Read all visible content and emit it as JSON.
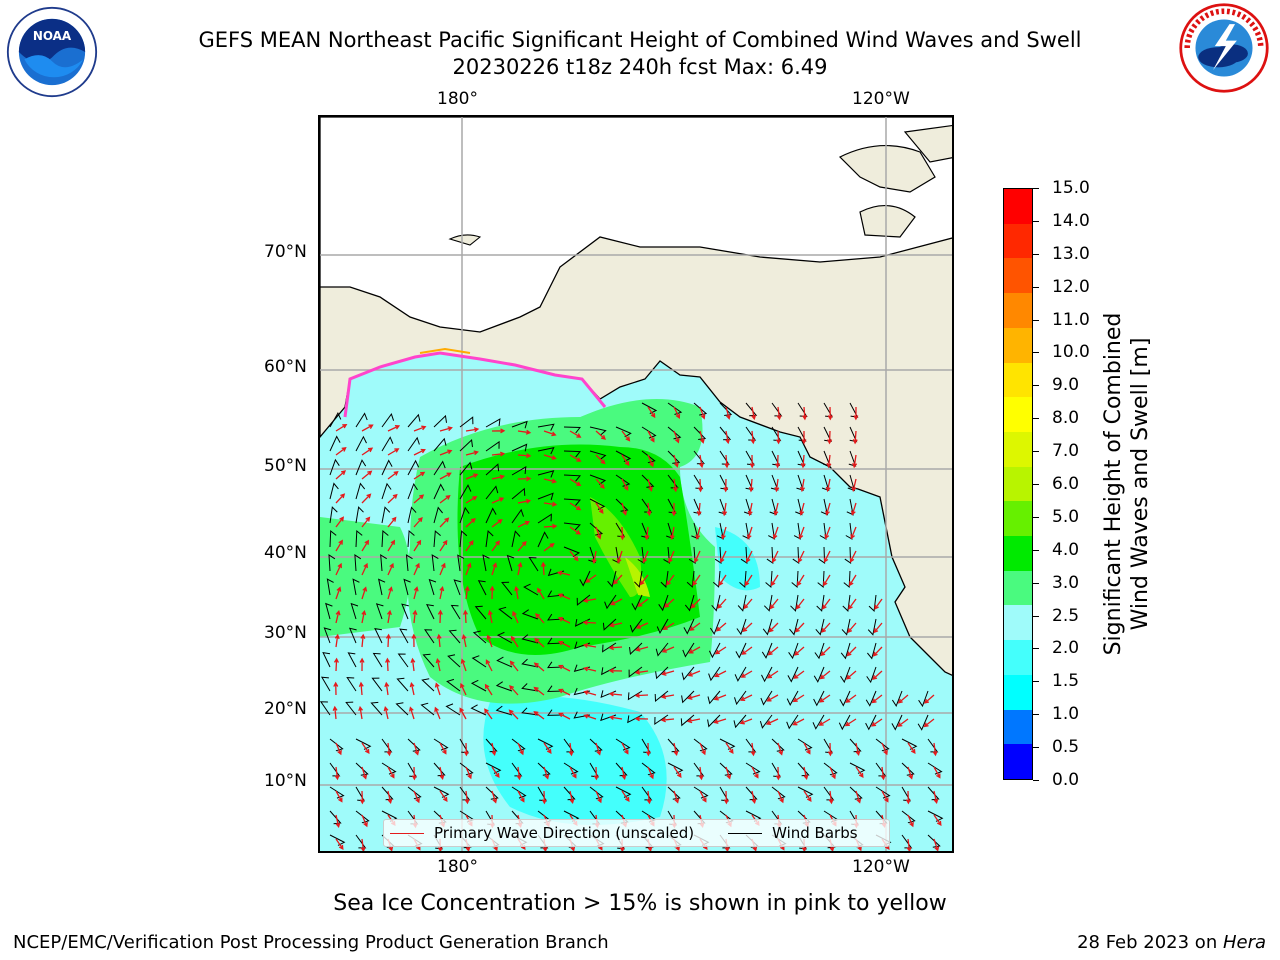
{
  "header": {
    "title_line1": "GEFS MEAN Northeast Pacific Significant Height of Combined Wind Waves and Swell",
    "title_line2": "20230226 t18z 240h fcst   Max: 6.49"
  },
  "logos": {
    "left": {
      "icon": "noaa-logo-icon",
      "text": "NOAA"
    },
    "right": {
      "icon": "nws-logo-icon",
      "text": "NATIONAL WEATHER SERVICE"
    }
  },
  "map": {
    "lon_labels_top": [
      "180°",
      "120°W"
    ],
    "lon_labels_bottom": [
      "180°",
      "120°W"
    ],
    "lat_labels": [
      "70°N",
      "60°N",
      "50°N",
      "40°N",
      "30°N",
      "20°N",
      "10°N"
    ],
    "land_color": "#efeddc",
    "ocean_base_color": "#9ffbfa",
    "legend": [
      {
        "label": "Primary Wave Direction (unscaled)",
        "color": "#e41a1c"
      },
      {
        "label": "Wind Barbs",
        "color": "#000000"
      }
    ]
  },
  "colorbar": {
    "label_line1": "Significant Height of Combined",
    "label_line2": "Wind Waves and Swell [m]",
    "ticks": [
      "0.0",
      "0.5",
      "1.0",
      "1.5",
      "2.0",
      "2.5",
      "3.0",
      "4.0",
      "5.0",
      "6.0",
      "7.0",
      "8.0",
      "9.0",
      "10.0",
      "11.0",
      "12.0",
      "13.0",
      "14.0",
      "15.0"
    ],
    "colors": [
      "#0000ff",
      "#0077ff",
      "#00ffff",
      "#44fffc",
      "#9ffbfa",
      "#4afa7f",
      "#00ea00",
      "#66f000",
      "#b8f400",
      "#ddf700",
      "#ffff00",
      "#ffe400",
      "#ffb400",
      "#ff8800",
      "#ff5400",
      "#ff2800",
      "#ff0000"
    ]
  },
  "footer": {
    "note": "Sea Ice Concentration > 15% is shown in pink to yellow",
    "left": "NCEP/EMC/Verification Post Processing Product Generation Branch",
    "right_date": "28 Feb 2023 on ",
    "right_host": "Hera"
  }
}
